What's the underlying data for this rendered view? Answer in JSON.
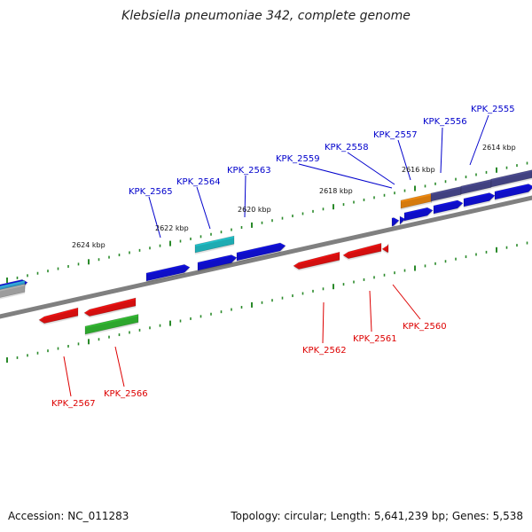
{
  "header": {
    "title": "Klebsiella pneumoniae 342, complete genome"
  },
  "footer": {
    "accession": "Accession: NC_011283",
    "summary": "Topology: circular; Length: 5,641,239 bp; Genes: 5,538"
  },
  "colors": {
    "backbone": "#808080",
    "tick": "#2a8a2a",
    "forward_label": "#0000cc",
    "reverse_label": "#dd0000",
    "blue": "#1010e0",
    "red": "#ee1111",
    "cyan": "#22c0c8",
    "green": "#33bb33",
    "orange": "#f08a10",
    "slate": "#4a4a90",
    "sky": "#33aadd",
    "gray": "#b0b0b0"
  },
  "scale_labels": [
    "2614 kbp",
    "2616 kbp",
    "2618 kbp",
    "2620 kbp",
    "2622 kbp",
    "2624 kbp"
  ],
  "forward_genes": [
    "KPK_2555",
    "KPK_2556",
    "KPK_2557",
    "KPK_2558",
    "KPK_2559",
    "KPK_2563",
    "KPK_2564",
    "KPK_2565"
  ],
  "reverse_genes": [
    "KPK_2560",
    "KPK_2561",
    "KPK_2562",
    "KPK_2566",
    "KPK_2567"
  ]
}
